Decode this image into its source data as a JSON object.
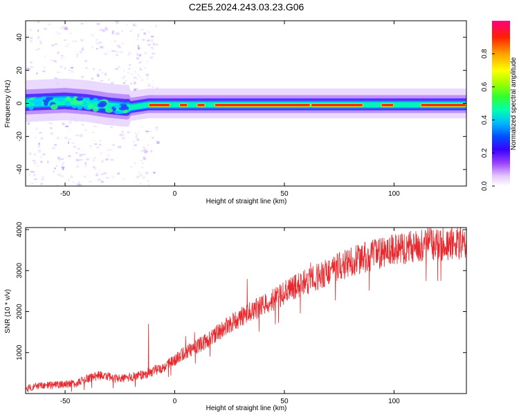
{
  "title": "C2E5.2024.243.03.23.G06",
  "chart_data": [
    {
      "type": "heatmap",
      "xlabel": "Height of straight line (km)",
      "ylabel": "Frequency (Hz)",
      "xlim": [
        -68,
        133
      ],
      "ylim": [
        -50,
        50
      ],
      "xticks": [
        -50,
        0,
        50,
        100
      ],
      "yticks": [
        -40,
        -20,
        0,
        20,
        40
      ],
      "grid": false,
      "ridge_frequency_hz": [
        {
          "x": -68,
          "y": 0
        },
        {
          "x": -50,
          "y": 1
        },
        {
          "x": -40,
          "y": 0
        },
        {
          "x": -30,
          "y": -2
        },
        {
          "x": -22,
          "y": -3
        },
        {
          "x": -12,
          "y": -1
        },
        {
          "x": 0,
          "y": -1
        },
        {
          "x": 50,
          "y": -1
        },
        {
          "x": 100,
          "y": -1
        },
        {
          "x": 133,
          "y": -1
        }
      ],
      "colorbar": {
        "label": "Normalized spectral amplitude",
        "range": [
          0.0,
          1.0
        ],
        "ticks": [
          0.0,
          0.2,
          0.4,
          0.6,
          0.8
        ]
      }
    },
    {
      "type": "line",
      "xlabel": "Height of straight line (km)",
      "ylabel": "SNR (10 * v/v)",
      "xlim": [
        -68,
        133
      ],
      "ylim": [
        0,
        4050
      ],
      "xticks": [
        -50,
        0,
        50,
        100
      ],
      "yticks": [
        1000,
        2000,
        3000,
        4000
      ],
      "grid": false,
      "series": [
        {
          "color": "#e8282c",
          "trend": [
            {
              "x": -68,
              "y": 150
            },
            {
              "x": -45,
              "y": 250
            },
            {
              "x": -35,
              "y": 450
            },
            {
              "x": -25,
              "y": 350
            },
            {
              "x": -15,
              "y": 450
            },
            {
              "x": -5,
              "y": 650
            },
            {
              "x": 5,
              "y": 1000
            },
            {
              "x": 15,
              "y": 1300
            },
            {
              "x": 25,
              "y": 1700
            },
            {
              "x": 35,
              "y": 2000
            },
            {
              "x": 45,
              "y": 2300
            },
            {
              "x": 55,
              "y": 2600
            },
            {
              "x": 65,
              "y": 2850
            },
            {
              "x": 75,
              "y": 3100
            },
            {
              "x": 85,
              "y": 3300
            },
            {
              "x": 95,
              "y": 3450
            },
            {
              "x": 105,
              "y": 3550
            },
            {
              "x": 115,
              "y": 3650
            },
            {
              "x": 133,
              "y": 3650
            }
          ],
          "spikes": [
            {
              "x": -12,
              "y": 1700
            },
            {
              "x": 5,
              "y": 1400
            },
            {
              "x": 9,
              "y": 1500
            },
            {
              "x": 33,
              "y": 2800
            },
            {
              "x": 62,
              "y": 3200
            },
            {
              "x": 91,
              "y": 3600
            },
            {
              "x": 133,
              "y": 4000
            }
          ]
        }
      ]
    }
  ]
}
